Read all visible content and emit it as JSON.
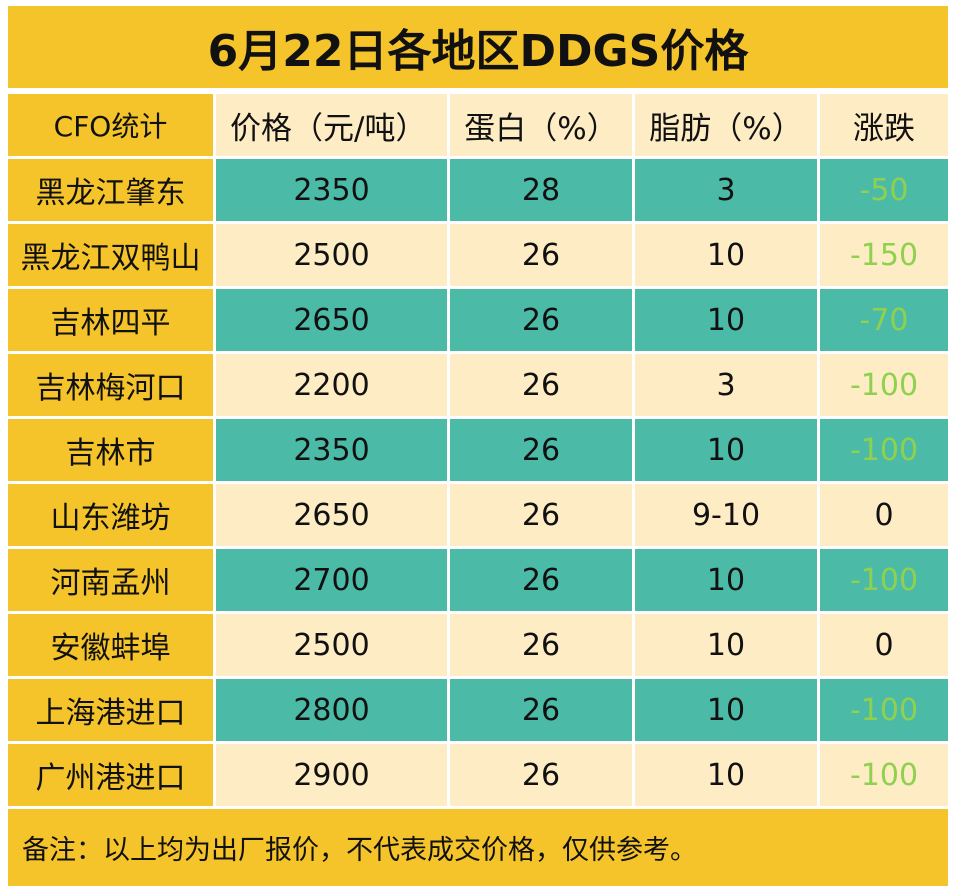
{
  "title": "6月22日各地区DDGS价格",
  "headers": [
    "CFO统计",
    "价格（元/吨）",
    "蛋白（%）",
    "脂肪（%）",
    "涨跌"
  ],
  "rows": [
    {
      "region": "黑龙江肇东",
      "price": "2350",
      "protein": "28",
      "fat": "3",
      "change": "-50",
      "trend": "down"
    },
    {
      "region": "黑龙江双鸭山",
      "price": "2500",
      "protein": "26",
      "fat": "10",
      "change": "-150",
      "trend": "down"
    },
    {
      "region": "吉林四平",
      "price": "2650",
      "protein": "26",
      "fat": "10",
      "change": "-70",
      "trend": "down"
    },
    {
      "region": "吉林梅河口",
      "price": "2200",
      "protein": "26",
      "fat": "3",
      "change": "-100",
      "trend": "down"
    },
    {
      "region": "吉林市",
      "price": "2350",
      "protein": "26",
      "fat": "10",
      "change": "-100",
      "trend": "down"
    },
    {
      "region": "山东潍坊",
      "price": "2650",
      "protein": "26",
      "fat": "9-10",
      "change": "0",
      "trend": "flat"
    },
    {
      "region": "河南孟州",
      "price": "2700",
      "protein": "26",
      "fat": "10",
      "change": "-100",
      "trend": "down"
    },
    {
      "region": "安徽蚌埠",
      "price": "2500",
      "protein": "26",
      "fat": "10",
      "change": "0",
      "trend": "flat"
    },
    {
      "region": "上海港进口",
      "price": "2800",
      "protein": "26",
      "fat": "10",
      "change": "-100",
      "trend": "down"
    },
    {
      "region": "广州港进口",
      "price": "2900",
      "protein": "26",
      "fat": "10",
      "change": "-100",
      "trend": "down"
    }
  ],
  "note": "备注：以上均为出厂报价，不代表成交价格，仅供参考。",
  "colors": {
    "yellow": "#f5c42a",
    "teal": "#4bbba8",
    "cream": "#fdecc4",
    "down_green": "#8fd14f"
  }
}
